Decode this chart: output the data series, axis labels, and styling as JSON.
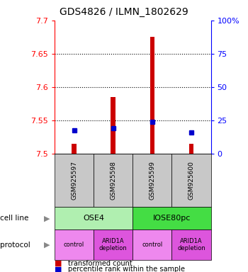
{
  "title": "GDS4826 / ILMN_1802629",
  "samples": [
    "GSM925597",
    "GSM925598",
    "GSM925599",
    "GSM925600"
  ],
  "red_bar_values": [
    7.515,
    7.585,
    7.675,
    7.515
  ],
  "blue_dot_values": [
    7.535,
    7.538,
    7.548,
    7.532
  ],
  "red_bar_base": 7.5,
  "ylim": [
    7.5,
    7.7
  ],
  "yticks_left": [
    7.5,
    7.55,
    7.6,
    7.65,
    7.7
  ],
  "yticks_right": [
    0,
    25,
    50,
    75,
    100
  ],
  "yticks_right_labels": [
    "0",
    "25",
    "50",
    "75",
    "100%"
  ],
  "cell_line_labels": [
    "OSE4",
    "IOSE80pc"
  ],
  "cell_line_spans": [
    [
      0,
      2
    ],
    [
      2,
      4
    ]
  ],
  "cell_line_colors": [
    "#b0efb0",
    "#44dd44"
  ],
  "protocol_labels": [
    "control",
    "ARID1A\ndepletion",
    "control",
    "ARID1A\ndepletion"
  ],
  "protocol_colors": [
    "#ee88ee",
    "#dd55dd",
    "#ee88ee",
    "#dd55dd"
  ],
  "label_cell_line": "cell line",
  "label_protocol": "protocol",
  "bar_color": "#cc0000",
  "dot_color": "#0000cc",
  "sample_bg_color": "#c8c8c8",
  "legend_red": "transformed count",
  "legend_blue": "percentile rank within the sample"
}
